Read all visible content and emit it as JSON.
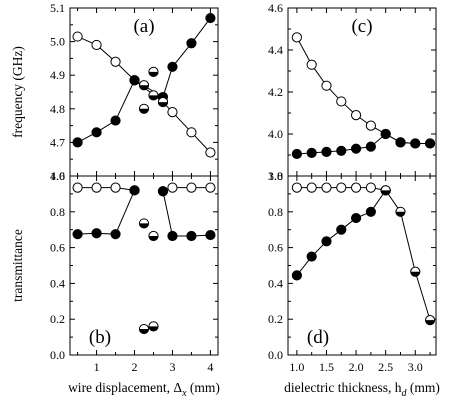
{
  "chart_data": [
    {
      "id": "a",
      "type": "scatter",
      "panel_label": "(a)",
      "ylabel": "frequency (GHz)",
      "xlabel": "",
      "xlim": [
        0.3,
        4.2
      ],
      "ylim": [
        4.6,
        5.1
      ],
      "xticks": [
        1,
        2,
        3,
        4
      ],
      "xtick_labels": [],
      "xticks_minor": [
        0.5,
        1.5,
        2.5,
        3.5
      ],
      "yticks": [
        4.6,
        4.7,
        4.8,
        4.9,
        5.0,
        5.1
      ],
      "ytick_labels": [
        "4.6",
        "4.7",
        "4.8",
        "4.9",
        "5.0",
        "5.1"
      ],
      "yticks_minor": [
        4.65,
        4.75,
        4.85,
        4.95,
        5.05
      ],
      "series": [
        {
          "marker": "open",
          "connected": true,
          "x": [
            0.5,
            1.0,
            1.5,
            2.0,
            2.75,
            3.0,
            3.5,
            4.0
          ],
          "y": [
            5.015,
            4.99,
            4.94,
            4.885,
            4.82,
            4.79,
            4.73,
            4.67
          ]
        },
        {
          "marker": "filled",
          "connected": true,
          "x": [
            0.5,
            1.0,
            1.5,
            2.0,
            2.75,
            3.0,
            3.5,
            4.0
          ],
          "y": [
            4.7,
            4.73,
            4.765,
            4.885,
            4.835,
            4.925,
            4.995,
            5.07
          ]
        },
        {
          "marker": "half",
          "connected": false,
          "x": [
            2.25,
            2.25,
            2.5,
            2.5,
            2.75
          ],
          "y": [
            4.87,
            4.8,
            4.91,
            4.84,
            4.82
          ]
        }
      ]
    },
    {
      "id": "b",
      "type": "scatter",
      "panel_label": "(b)",
      "ylabel": "transmittance",
      "xlabel": "wire displacement, Δ",
      "xlabel_sub": "x",
      "xlabel_unit": " (mm)",
      "xlim": [
        0.3,
        4.2
      ],
      "ylim": [
        0.0,
        1.0
      ],
      "xticks": [
        1,
        2,
        3,
        4
      ],
      "xtick_labels": [
        "1",
        "2",
        "3",
        "4"
      ],
      "xticks_minor": [
        0.5,
        1.5,
        2.5,
        3.5
      ],
      "yticks": [
        0.0,
        0.2,
        0.4,
        0.6,
        0.8,
        1.0
      ],
      "ytick_labels": [
        "0.0",
        "0.2",
        "0.4",
        "0.6",
        "0.8",
        "1.0"
      ],
      "yticks_minor": [
        0.1,
        0.3,
        0.5,
        0.7,
        0.9
      ],
      "series": [
        {
          "marker": "open",
          "connected": true,
          "x": [
            0.5,
            1.0,
            1.5,
            2.0
          ],
          "y": [
            0.935,
            0.935,
            0.935,
            0.92
          ]
        },
        {
          "marker": "open",
          "connected": true,
          "x": [
            2.75,
            3.0,
            3.5,
            4.0
          ],
          "y": [
            0.915,
            0.935,
            0.935,
            0.935
          ]
        },
        {
          "marker": "filled",
          "connected": true,
          "x": [
            0.5,
            1.0,
            1.5,
            2.0
          ],
          "y": [
            0.675,
            0.68,
            0.675,
            0.92
          ]
        },
        {
          "marker": "filled",
          "connected": true,
          "x": [
            2.75,
            3.0,
            3.5,
            4.0
          ],
          "y": [
            0.915,
            0.665,
            0.665,
            0.67
          ]
        },
        {
          "marker": "half",
          "connected": false,
          "x": [
            2.25,
            2.5,
            2.25,
            2.5
          ],
          "y": [
            0.735,
            0.665,
            0.145,
            0.16
          ]
        }
      ]
    },
    {
      "id": "c",
      "type": "scatter",
      "panel_label": "(c)",
      "ylabel": "",
      "xlabel": "",
      "xlim": [
        0.85,
        3.35
      ],
      "ylim": [
        3.8,
        4.6
      ],
      "xticks": [
        1.0,
        1.5,
        2.0,
        2.5,
        3.0
      ],
      "xtick_labels": [],
      "xticks_minor": [
        1.25,
        1.75,
        2.25,
        2.75,
        3.25
      ],
      "yticks": [
        3.8,
        4.0,
        4.2,
        4.4,
        4.6
      ],
      "ytick_labels": [
        "3.8",
        "4.0",
        "4.2",
        "4.4",
        "4.6"
      ],
      "yticks_minor": [
        3.9,
        4.1,
        4.3,
        4.5
      ],
      "series": [
        {
          "marker": "open",
          "connected": true,
          "x": [
            1.0,
            1.25,
            1.5,
            1.75,
            2.0,
            2.25,
            2.5,
            2.75,
            3.0,
            3.25
          ],
          "y": [
            4.46,
            4.33,
            4.23,
            4.155,
            4.09,
            4.04,
            4.0,
            3.96,
            3.955,
            3.955
          ]
        },
        {
          "marker": "filled",
          "connected": true,
          "x": [
            1.0,
            1.25,
            1.5,
            1.75,
            2.0,
            2.25,
            2.5,
            2.75,
            3.0,
            3.25
          ],
          "y": [
            3.905,
            3.91,
            3.915,
            3.92,
            3.93,
            3.94,
            4.0,
            3.96,
            3.955,
            3.955
          ]
        }
      ]
    },
    {
      "id": "d",
      "type": "scatter",
      "panel_label": "(d)",
      "ylabel": "",
      "xlabel": "dielectric thickness, h",
      "xlabel_sub": "d",
      "xlabel_unit": " (mm)",
      "xlim": [
        0.85,
        3.35
      ],
      "ylim": [
        0.0,
        1.0
      ],
      "xticks": [
        1.0,
        1.5,
        2.0,
        2.5,
        3.0
      ],
      "xtick_labels": [
        "1.0",
        "1.5",
        "2.0",
        "2.5",
        "3.0"
      ],
      "xticks_minor": [
        1.25,
        1.75,
        2.25,
        2.75,
        3.25
      ],
      "yticks": [
        0.0,
        0.2,
        0.4,
        0.6,
        0.8,
        1.0
      ],
      "ytick_labels": [
        "0.0",
        "0.2",
        "0.4",
        "0.6",
        "0.8",
        "1.0"
      ],
      "yticks_minor": [
        0.1,
        0.3,
        0.5,
        0.7,
        0.9
      ],
      "series": [
        {
          "marker": "open",
          "connected": true,
          "x": [
            1.0,
            1.25,
            1.5,
            1.75,
            2.0,
            2.25,
            2.5
          ],
          "y": [
            0.935,
            0.935,
            0.935,
            0.935,
            0.935,
            0.935,
            0.92
          ]
        },
        {
          "marker": "filled",
          "connected": true,
          "x": [
            1.0,
            1.25,
            1.5,
            1.75,
            2.0,
            2.25,
            2.5
          ],
          "y": [
            0.445,
            0.55,
            0.635,
            0.7,
            0.765,
            0.8,
            0.92
          ]
        },
        {
          "marker": "half",
          "connected": true,
          "x": [
            2.5,
            2.75,
            3.0,
            3.25
          ],
          "y": [
            0.92,
            0.8,
            0.465,
            0.195
          ]
        }
      ]
    }
  ]
}
